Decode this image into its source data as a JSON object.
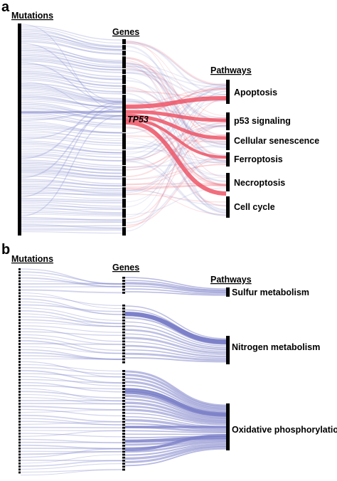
{
  "panel_a": {
    "letter": "a",
    "headers": {
      "mutations": "Mutations",
      "genes": "Genes",
      "pathways": "Pathways"
    },
    "highlight_gene": "TP53",
    "pathways": [
      "Apoptosis",
      "p53 signaling",
      "Cellular senescence",
      "Ferroptosis",
      "Necroptosis",
      "Cell cycle"
    ]
  },
  "panel_b": {
    "letter": "b",
    "headers": {
      "mutations": "Mutations",
      "genes": "Genes",
      "pathways": "Pathways"
    },
    "pathways": [
      "Sulfur metabolism",
      "Nitrogen metabolism",
      "Oxidative phosphorylation"
    ]
  },
  "colors": {
    "flow": "#7b80c8",
    "highlight": "#ee5566",
    "node": "#000000"
  }
}
